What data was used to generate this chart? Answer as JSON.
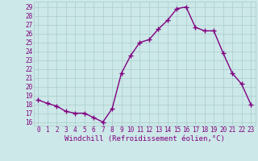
{
  "x": [
    0,
    1,
    2,
    3,
    4,
    5,
    6,
    7,
    8,
    9,
    10,
    11,
    12,
    13,
    14,
    15,
    16,
    17,
    18,
    19,
    20,
    21,
    22,
    23
  ],
  "y": [
    18.5,
    18.1,
    17.8,
    17.2,
    17.0,
    17.0,
    16.5,
    16.0,
    17.5,
    21.5,
    23.5,
    25.0,
    25.3,
    26.5,
    27.5,
    28.8,
    29.0,
    26.7,
    26.3,
    26.3,
    23.8,
    21.5,
    20.3,
    18.0
  ],
  "line_color": "#800080",
  "marker": "+",
  "marker_size": 4,
  "marker_linewidth": 1.0,
  "bg_color": "#cce8e8",
  "grid_color": "#aacccc",
  "xlabel": "Windchill (Refroidissement éolien,°C)",
  "ylabel_values": [
    16,
    17,
    18,
    19,
    20,
    21,
    22,
    23,
    24,
    25,
    26,
    27,
    28,
    29
  ],
  "xlim": [
    -0.5,
    23.5
  ],
  "ylim": [
    15.6,
    29.6
  ],
  "xlabel_color": "#800080",
  "axis_label_fontsize": 6.5,
  "tick_fontsize": 5.5,
  "linewidth": 1.0
}
